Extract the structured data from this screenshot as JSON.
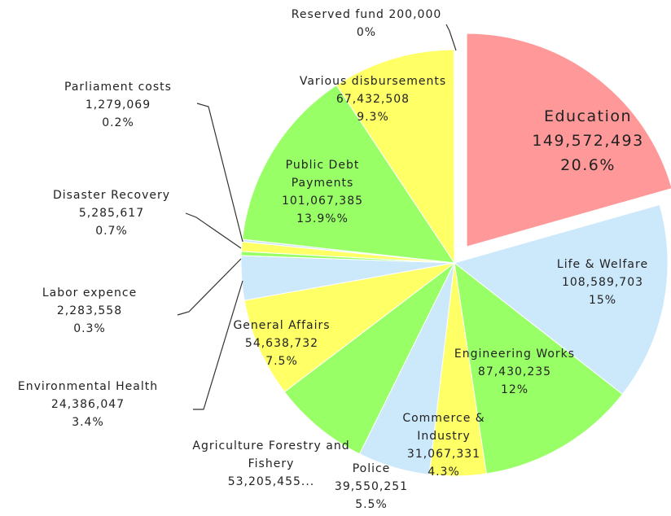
{
  "chart_data": {
    "type": "pie",
    "categories": [
      "Education",
      "Life & Welfare",
      "Engineering Works",
      "Commerce & Industry",
      "Police",
      "Agriculture Forestry and Fishery",
      "General Affairs",
      "Environmental Health",
      "Labor expence",
      "Disaster Recovery",
      "Parliament costs",
      "Public Debt Payments",
      "Various disbursements",
      "Reserved fund"
    ],
    "values": [
      149572493,
      108589703,
      87430235,
      31067331,
      39550251,
      53205455,
      54638732,
      24386047,
      2283558,
      5285617,
      1279069,
      101067385,
      67432508,
      200000
    ],
    "value_labels": [
      "149,572,493",
      "108,589,703",
      "87,430,235",
      "31,067,331",
      "39,550,251",
      "53,205,455...",
      "54,638,732",
      "24,386,047",
      "2,283,558",
      "5,285,617",
      "1,279,069",
      "101,067,385",
      "67,432,508",
      "200,000"
    ],
    "percents": [
      20.6,
      15,
      12,
      4.3,
      5.5,
      null,
      7.5,
      3.4,
      0.3,
      0.7,
      0.2,
      13.9,
      9.3,
      0
    ],
    "percent_labels": [
      "20.6%",
      "15%",
      "12%",
      "4.3%",
      "5.5%",
      null,
      "7.5%",
      "3.4%",
      "0.3%",
      "0.7%",
      "0.2%",
      "13.9%%",
      "9.3%",
      "0%"
    ],
    "colors": [
      "#ff9999",
      "#cce8fb",
      "#99ff66",
      "#ffff66",
      "#cce8fb",
      "#99ff66",
      "#ffff66",
      "#cce8fb",
      "#99ff66",
      "#ffff66",
      "#cce8fb",
      "#99ff66",
      "#ffff66",
      "#cce8fb"
    ],
    "exploded": [
      0
    ]
  }
}
